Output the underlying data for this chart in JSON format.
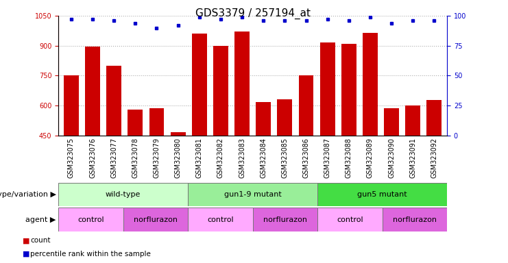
{
  "title": "GDS3379 / 257194_at",
  "samples": [
    "GSM323075",
    "GSM323076",
    "GSM323077",
    "GSM323078",
    "GSM323079",
    "GSM323080",
    "GSM323081",
    "GSM323082",
    "GSM323083",
    "GSM323084",
    "GSM323085",
    "GSM323086",
    "GSM323087",
    "GSM323088",
    "GSM323089",
    "GSM323090",
    "GSM323091",
    "GSM323092"
  ],
  "counts": [
    750,
    897,
    800,
    578,
    585,
    468,
    960,
    900,
    970,
    618,
    630,
    750,
    915,
    910,
    965,
    588,
    600,
    628
  ],
  "percentile_ranks": [
    97,
    97,
    96,
    94,
    90,
    92,
    99,
    97,
    99,
    96,
    96,
    96,
    97,
    96,
    99,
    94,
    96,
    96
  ],
  "ylim_left": [
    450,
    1050
  ],
  "ylim_right": [
    0,
    100
  ],
  "yticks_left": [
    450,
    600,
    750,
    900,
    1050
  ],
  "yticks_right": [
    0,
    25,
    50,
    75,
    100
  ],
  "bar_color": "#cc0000",
  "dot_color": "#0000cc",
  "genotype_groups": [
    {
      "label": "wild-type",
      "start": 0,
      "end": 5,
      "color": "#ccffcc"
    },
    {
      "label": "gun1-9 mutant",
      "start": 6,
      "end": 11,
      "color": "#99ee99"
    },
    {
      "label": "gun5 mutant",
      "start": 12,
      "end": 17,
      "color": "#44dd44"
    }
  ],
  "agent_groups": [
    {
      "label": "control",
      "start": 0,
      "end": 2,
      "color": "#ffaaff"
    },
    {
      "label": "norflurazon",
      "start": 3,
      "end": 5,
      "color": "#dd66dd"
    },
    {
      "label": "control",
      "start": 6,
      "end": 8,
      "color": "#ffaaff"
    },
    {
      "label": "norflurazon",
      "start": 9,
      "end": 11,
      "color": "#dd66dd"
    },
    {
      "label": "control",
      "start": 12,
      "end": 14,
      "color": "#ffaaff"
    },
    {
      "label": "norflurazon",
      "start": 15,
      "end": 17,
      "color": "#dd66dd"
    }
  ],
  "legend_count_label": "count",
  "legend_pct_label": "percentile rank within the sample",
  "xlabel_genotype": "genotype/variation",
  "xlabel_agent": "agent",
  "background_color": "#ffffff",
  "grid_color": "#999999",
  "title_fontsize": 11,
  "tick_fontsize": 7,
  "label_fontsize": 8,
  "row_label_fontsize": 8
}
